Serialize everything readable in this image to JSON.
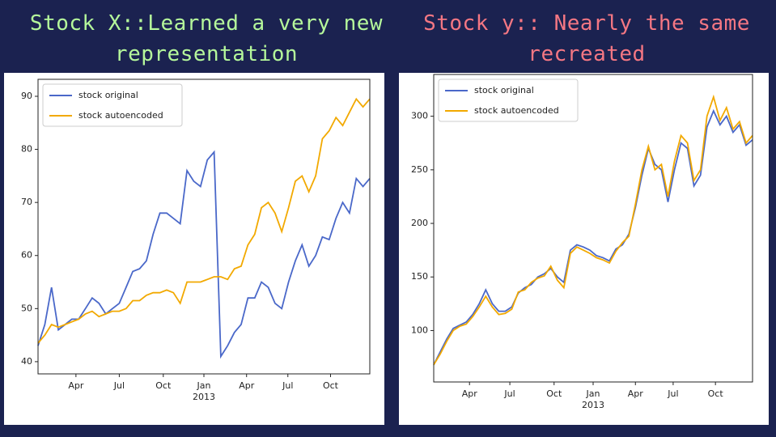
{
  "chart_data": [
    {
      "type": "line",
      "title": "Stock X::Learned a very new representation",
      "title_color": "#b5f79b",
      "series": [
        {
          "name": "stock original",
          "color": "#4a68c9",
          "values": [
            43,
            47,
            54,
            46,
            47,
            48,
            48,
            50,
            52,
            51,
            49,
            50,
            51,
            54,
            57,
            57.5,
            59,
            64,
            68,
            68,
            67,
            66,
            76,
            74,
            73,
            78,
            79.5,
            41,
            43,
            45.5,
            47,
            52,
            52,
            55,
            54,
            51,
            50,
            55,
            59,
            62,
            58,
            60,
            63.5,
            63,
            67,
            70,
            68,
            74.5,
            73,
            74.5
          ]
        },
        {
          "name": "stock autoencoded",
          "color": "#f2a900",
          "values": [
            43.5,
            45,
            47,
            46.5,
            47,
            47.5,
            48,
            49,
            49.5,
            48.5,
            49,
            49.5,
            49.5,
            50,
            51.5,
            51.5,
            52.5,
            53,
            53,
            53.5,
            53,
            51,
            55,
            55,
            55,
            55.5,
            56,
            56,
            55.5,
            57.5,
            58,
            62,
            64,
            69,
            70,
            68,
            64.5,
            69,
            74,
            75,
            72,
            75,
            82,
            83.5,
            86,
            84.5,
            87,
            89.5,
            88,
            89.5
          ]
        }
      ],
      "xlim": [
        0,
        49
      ],
      "xticks": [
        {
          "value": 5.6,
          "label": "Apr"
        },
        {
          "value": 12,
          "label": "Jul"
        },
        {
          "value": 18.5,
          "label": "Oct"
        },
        {
          "value": 24.5,
          "label": "Jan"
        },
        {
          "value": 30.8,
          "label": "Apr"
        },
        {
          "value": 36.9,
          "label": "Jul"
        },
        {
          "value": 43.2,
          "label": "Oct"
        }
      ],
      "x_year_label": "2013",
      "ylim": [
        37.7,
        93.2
      ],
      "yticks": [
        40,
        50,
        60,
        70,
        80,
        90
      ],
      "legend": "upper left"
    },
    {
      "type": "line",
      "title": "Stock y:: Nearly the same recreated",
      "title_color": "#f47783",
      "series": [
        {
          "name": "stock original",
          "color": "#4a68c9",
          "values": [
            68,
            80,
            92,
            102,
            105,
            108,
            115,
            125,
            138,
            125,
            118,
            118,
            122,
            135,
            140,
            143,
            150,
            153,
            158,
            150,
            145,
            175,
            180,
            178,
            175,
            170,
            168,
            165,
            176,
            180,
            190,
            215,
            245,
            270,
            255,
            250,
            220,
            250,
            275,
            270,
            235,
            245,
            290,
            305,
            292,
            300,
            285,
            292,
            273,
            278
          ]
        },
        {
          "name": "stock autoencoded",
          "color": "#f2a900",
          "values": [
            68,
            78,
            90,
            100,
            104,
            106,
            113,
            122,
            132,
            122,
            115,
            116,
            120,
            136,
            138,
            145,
            149,
            151,
            160,
            147,
            140,
            172,
            178,
            175,
            172,
            168,
            166,
            163,
            174,
            182,
            188,
            218,
            250,
            272,
            250,
            255,
            225,
            258,
            282,
            275,
            240,
            250,
            300,
            318,
            296,
            308,
            288,
            295,
            275,
            282
          ]
        }
      ],
      "xlim": [
        0,
        49
      ],
      "xticks": [
        {
          "value": 5.5,
          "label": "Apr"
        },
        {
          "value": 11.7,
          "label": "Jul"
        },
        {
          "value": 18.5,
          "label": "Oct"
        },
        {
          "value": 24.5,
          "label": "Jan"
        },
        {
          "value": 31,
          "label": "Apr"
        },
        {
          "value": 36.8,
          "label": "Jul"
        },
        {
          "value": 43.3,
          "label": "Oct"
        }
      ],
      "x_year_label": "2013",
      "ylim": [
        52,
        339
      ],
      "yticks": [
        100,
        150,
        200,
        250,
        300
      ],
      "legend": "upper left"
    }
  ]
}
